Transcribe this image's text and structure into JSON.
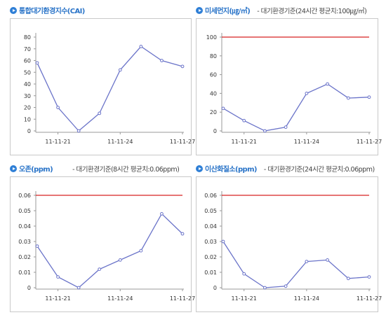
{
  "colors": {
    "series": "#6b74c9",
    "standard": "#d62020",
    "title": "#2a74c8",
    "bullet": "#2f7fd6"
  },
  "chart_data": [
    {
      "type": "line",
      "title": "통합대기환경지수(CAI)",
      "standard_text": "",
      "x_tick_labels": [
        "11-11-21",
        "11-11-24",
        "11-11-27"
      ],
      "x_tick_index": [
        1,
        4,
        7
      ],
      "series": [
        {
          "values": [
            58,
            20,
            0,
            15,
            52,
            72,
            60,
            55
          ]
        }
      ],
      "ylim": [
        0,
        80
      ],
      "y_ticks": [
        "0",
        "10",
        "20",
        "30",
        "40",
        "50",
        "60",
        "70",
        "80"
      ],
      "reference_line": null
    },
    {
      "type": "line",
      "title": "미세먼지(㎍/㎥)",
      "standard_text": "- 대기환경기준(24시간 평균치:100㎍/㎥)",
      "x_tick_labels": [
        "11-11-21",
        "11-11-24",
        "11-11-27"
      ],
      "x_tick_index": [
        1,
        4,
        7
      ],
      "series": [
        {
          "values": [
            24,
            11,
            0,
            4,
            40,
            50,
            35,
            36
          ]
        }
      ],
      "ylim": [
        0,
        100
      ],
      "y_ticks": [
        "0",
        "20",
        "40",
        "60",
        "80",
        "100"
      ],
      "reference_line": 100
    },
    {
      "type": "line",
      "title": "오존(ppm)",
      "standard_text": "- 대기환경기준(8시간 평균치:0.06ppm)",
      "x_tick_labels": [
        "11-11-21",
        "11-11-24",
        "11-11-27"
      ],
      "x_tick_index": [
        1,
        4,
        7
      ],
      "series": [
        {
          "values": [
            0.027,
            0.007,
            0.0,
            0.012,
            0.018,
            0.024,
            0.048,
            0.035
          ]
        }
      ],
      "ylim": [
        0,
        0.06
      ],
      "y_ticks": [
        "0",
        "0.01",
        "0.02",
        "0.03",
        "0.04",
        "0.05",
        "0.06"
      ],
      "reference_line": 0.06
    },
    {
      "type": "line",
      "title": "이산화질소(ppm)",
      "standard_text": "- 대기환경기준(24시간 평균치:0.06ppm)",
      "x_tick_labels": [
        "11-11-21",
        "11-11-24",
        "11-11-27"
      ],
      "x_tick_index": [
        1,
        4,
        7
      ],
      "series": [
        {
          "values": [
            0.03,
            0.009,
            0.0,
            0.001,
            0.017,
            0.018,
            0.006,
            0.007
          ]
        }
      ],
      "ylim": [
        0,
        0.06
      ],
      "y_ticks": [
        "0",
        "0.01",
        "0.02",
        "0.03",
        "0.04",
        "0.05",
        "0.06"
      ],
      "reference_line": 0.06
    }
  ]
}
